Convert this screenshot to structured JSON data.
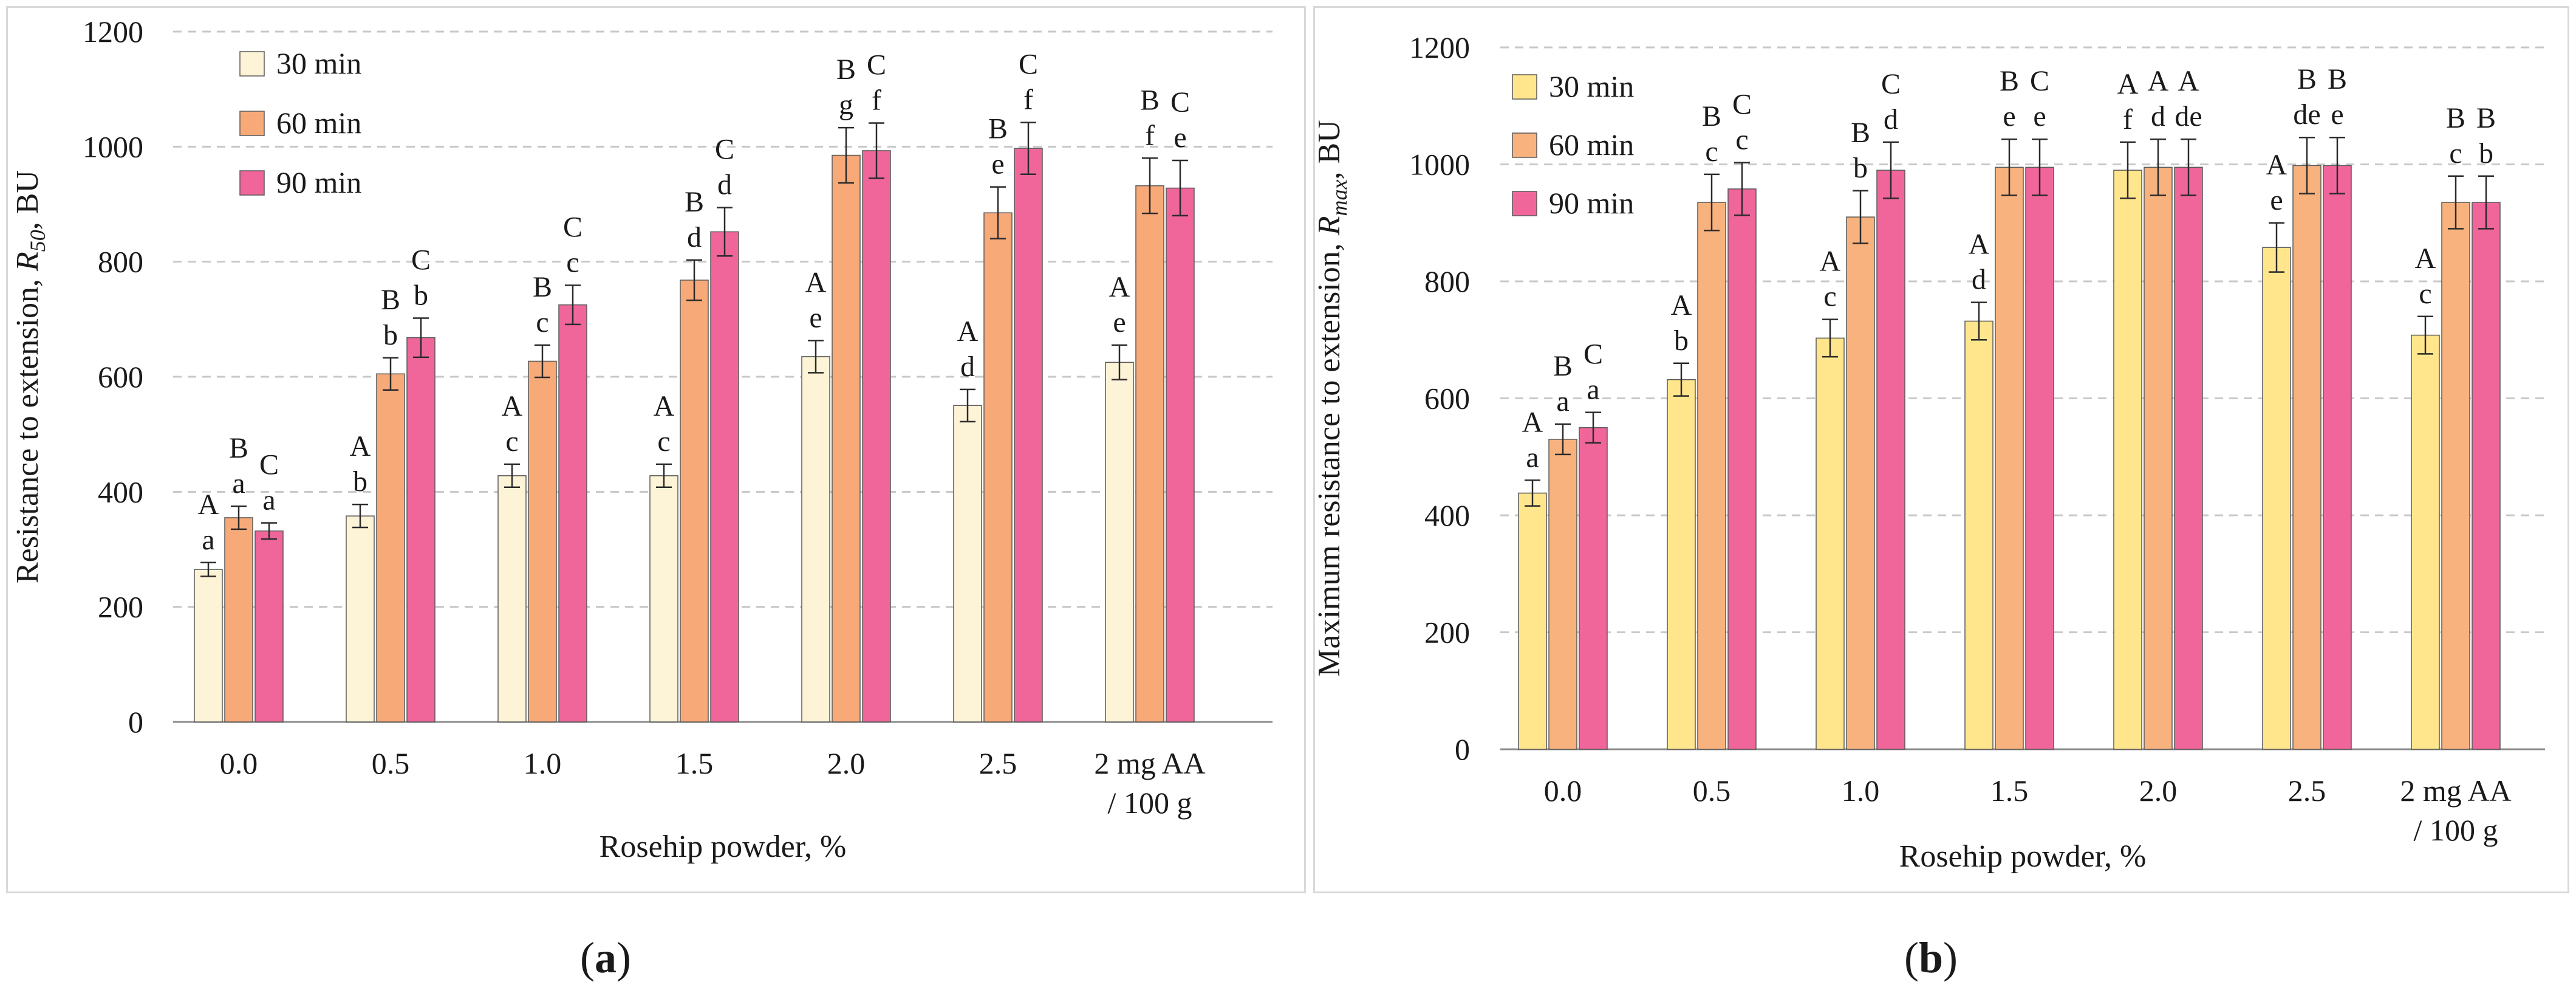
{
  "figure": {
    "panel_a_label": "a",
    "panel_b_label": "b"
  },
  "colors": {
    "a": [
      "#fdf3d6",
      "#f8a978",
      "#f0669a"
    ],
    "b": [
      "#ffe68c",
      "#f8b27e",
      "#f0669a"
    ],
    "grid": "#c8c8c8",
    "axis": "#8c8c8c",
    "bar_stroke": "#5a5a5a"
  },
  "chart_data": [
    {
      "id": "a",
      "type": "bar",
      "title": "",
      "xlabel": "Rosehip powder, %",
      "ylabel_main": "Resistance to extension, ",
      "ylabel_italic": "R",
      "ylabel_sub": "50",
      "ylabel_tail": ", BU",
      "ylim": [
        0,
        1200
      ],
      "yticks": [
        0,
        200,
        400,
        600,
        800,
        1000,
        1200
      ],
      "categories": [
        "0.0",
        "0.5",
        "1.0",
        "1.5",
        "2.0",
        "2.5",
        "2 mg AA"
      ],
      "category_line2": [
        "",
        "",
        "",
        "",
        "",
        "",
        "/ 100 g"
      ],
      "legend_position": "top-left",
      "series": [
        {
          "name": "30 min",
          "values": [
            265,
            358,
            428,
            428,
            635,
            550,
            625
          ],
          "errors": [
            12,
            20,
            20,
            20,
            28,
            28,
            30
          ]
        },
        {
          "name": "60 min",
          "values": [
            355,
            605,
            627,
            768,
            985,
            885,
            932
          ],
          "errors": [
            20,
            28,
            28,
            35,
            48,
            45,
            48
          ]
        },
        {
          "name": "90 min",
          "values": [
            332,
            668,
            725,
            852,
            993,
            997,
            928
          ],
          "errors": [
            14,
            34,
            34,
            42,
            48,
            45,
            48
          ]
        }
      ],
      "letters": [
        [
          [
            "A",
            "a"
          ],
          [
            "B",
            "a"
          ],
          [
            "C",
            "a"
          ]
        ],
        [
          [
            "A",
            "b"
          ],
          [
            "B",
            "b"
          ],
          [
            "C",
            "b"
          ]
        ],
        [
          [
            "A",
            "c"
          ],
          [
            "B",
            "c"
          ],
          [
            "C",
            "c"
          ]
        ],
        [
          [
            "A",
            "c"
          ],
          [
            "B",
            "d"
          ],
          [
            "C",
            "d"
          ]
        ],
        [
          [
            "A",
            "e"
          ],
          [
            "B",
            "g"
          ],
          [
            "C",
            "f"
          ]
        ],
        [
          [
            "A",
            "d"
          ],
          [
            "B",
            "e"
          ],
          [
            "C",
            "f"
          ]
        ],
        [
          [
            "A",
            "e"
          ],
          [
            "B",
            "f"
          ],
          [
            "C",
            "e"
          ]
        ]
      ]
    },
    {
      "id": "b",
      "type": "bar",
      "title": "",
      "xlabel": "Rosehip powder, %",
      "ylabel_main": "Maximum resistance to extension, ",
      "ylabel_italic": "R",
      "ylabel_sub": "max",
      "ylabel_tail": ", BU",
      "ylim": [
        0,
        1200
      ],
      "yticks": [
        0,
        200,
        400,
        600,
        800,
        1000,
        1200
      ],
      "categories": [
        "0.0",
        "0.5",
        "1.0",
        "1.5",
        "2.0",
        "2.5",
        "2 mg AA"
      ],
      "category_line2": [
        "",
        "",
        "",
        "",
        "",
        "",
        "/ 100 g"
      ],
      "legend_position": "top-left",
      "series": [
        {
          "name": "30 min",
          "values": [
            438,
            632,
            703,
            732,
            990,
            858,
            708
          ],
          "errors": [
            22,
            28,
            32,
            32,
            48,
            42,
            32
          ]
        },
        {
          "name": "60 min",
          "values": [
            530,
            935,
            910,
            995,
            995,
            998,
            935
          ],
          "errors": [
            26,
            48,
            45,
            48,
            48,
            48,
            45
          ]
        },
        {
          "name": "90 min",
          "values": [
            550,
            958,
            990,
            995,
            995,
            998,
            935
          ],
          "errors": [
            26,
            45,
            48,
            48,
            48,
            48,
            45
          ]
        }
      ],
      "letters": [
        [
          [
            "A",
            "a"
          ],
          [
            "B",
            "a"
          ],
          [
            "C",
            "a"
          ]
        ],
        [
          [
            "A",
            "b"
          ],
          [
            "B",
            "c"
          ],
          [
            "C",
            "c"
          ]
        ],
        [
          [
            "A",
            "c"
          ],
          [
            "B",
            "b"
          ],
          [
            "C",
            "d"
          ]
        ],
        [
          [
            "A",
            "d"
          ],
          [
            "B",
            "e"
          ],
          [
            "C",
            "e"
          ]
        ],
        [
          [
            "A",
            "f"
          ],
          [
            "A",
            "d"
          ],
          [
            "A",
            "de"
          ]
        ],
        [
          [
            "A",
            "e"
          ],
          [
            "B",
            "de"
          ],
          [
            "B",
            "e"
          ]
        ],
        [
          [
            "A",
            "c"
          ],
          [
            "B",
            "c"
          ],
          [
            "B",
            "b"
          ]
        ]
      ]
    }
  ]
}
